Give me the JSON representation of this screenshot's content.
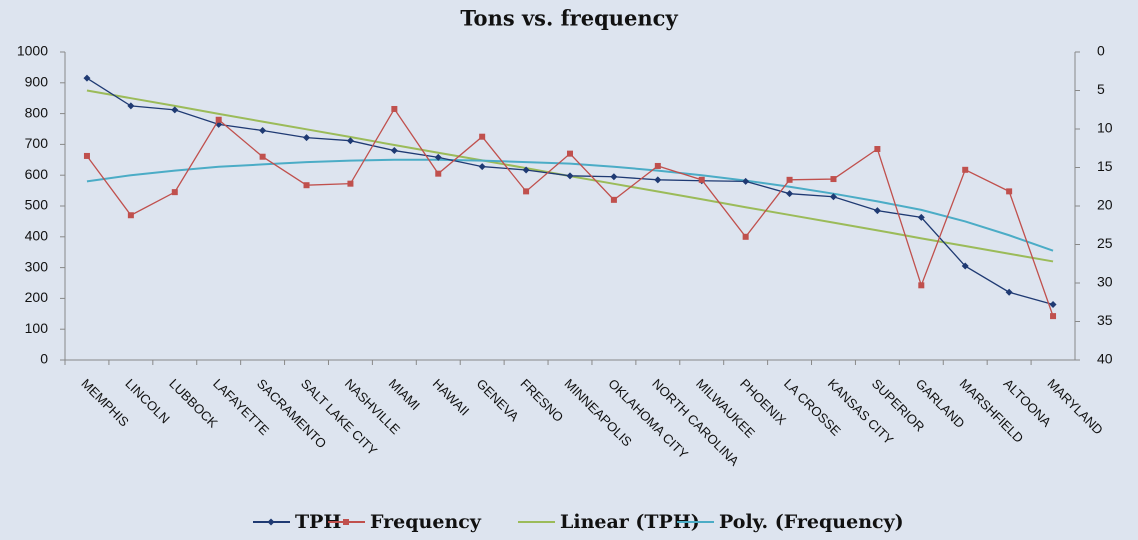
{
  "chart_data": {
    "type": "line",
    "title": "Tons vs. frequency",
    "categories": [
      "MEMPHIS",
      "LINCOLN",
      "LUBBOCK",
      "LAFAYETTE",
      "SACRAMENTO",
      "SALT LAKE CITY",
      "NASHVILLE",
      "MIAMI",
      "HAWAII",
      "GENEVA",
      "FRESNO",
      "MINNEAPOLIS",
      "OKLAHOMA CITY",
      "NORTH CAROLINA",
      "MILWAUKEE",
      "PHOENIX",
      "LA CROSSE",
      "KANSAS CITY",
      "SUPERIOR",
      "GARLAND",
      "MARSHFIELD",
      "ALTOONA",
      "MARYLAND"
    ],
    "series": [
      {
        "name": "TPH",
        "color": "#1f3a73",
        "marker": "diamond",
        "values": [
          915,
          825,
          812,
          765,
          745,
          722,
          712,
          680,
          658,
          628,
          617,
          598,
          595,
          585,
          582,
          580,
          540,
          530,
          485,
          463,
          305,
          220,
          180
        ]
      },
      {
        "name": "Frequency",
        "color": "#c0504d",
        "marker": "square",
        "axis": "y2",
        "values": [
          13.5,
          21.2,
          18.2,
          8.8,
          13.6,
          17.3,
          17.1,
          7.4,
          15.8,
          11.0,
          18.1,
          13.2,
          19.2,
          14.8,
          16.6,
          24.0,
          16.6,
          16.5,
          12.6,
          30.3,
          15.3,
          18.1,
          34.3
        ]
      },
      {
        "name": "Linear (TPH)",
        "color": "#9bbb59",
        "values": [
          875,
          850,
          825,
          799,
          774,
          749,
          724,
          698,
          673,
          648,
          623,
          597,
          572,
          547,
          522,
          496,
          471,
          446,
          421,
          395,
          370,
          345,
          320
        ]
      },
      {
        "name": "Poly. (Frequency)",
        "color": "#4bacc6",
        "axis": "y2",
        "values": [
          16.8,
          16.0,
          15.4,
          14.9,
          14.6,
          14.3,
          14.1,
          14.0,
          14.0,
          14.1,
          14.3,
          14.5,
          14.9,
          15.4,
          16.0,
          16.7,
          17.5,
          18.4,
          19.4,
          20.5,
          22.0,
          23.8,
          25.8
        ]
      }
    ],
    "ylim": [
      0,
      1000
    ],
    "yticks": [
      0,
      100,
      200,
      300,
      400,
      500,
      600,
      700,
      800,
      900,
      1000
    ],
    "y2lim": [
      40,
      0
    ],
    "y2ticks": [
      0,
      5,
      10,
      15,
      20,
      25,
      30,
      35,
      40
    ],
    "legend": "bottom",
    "background": "#dde4ef"
  }
}
